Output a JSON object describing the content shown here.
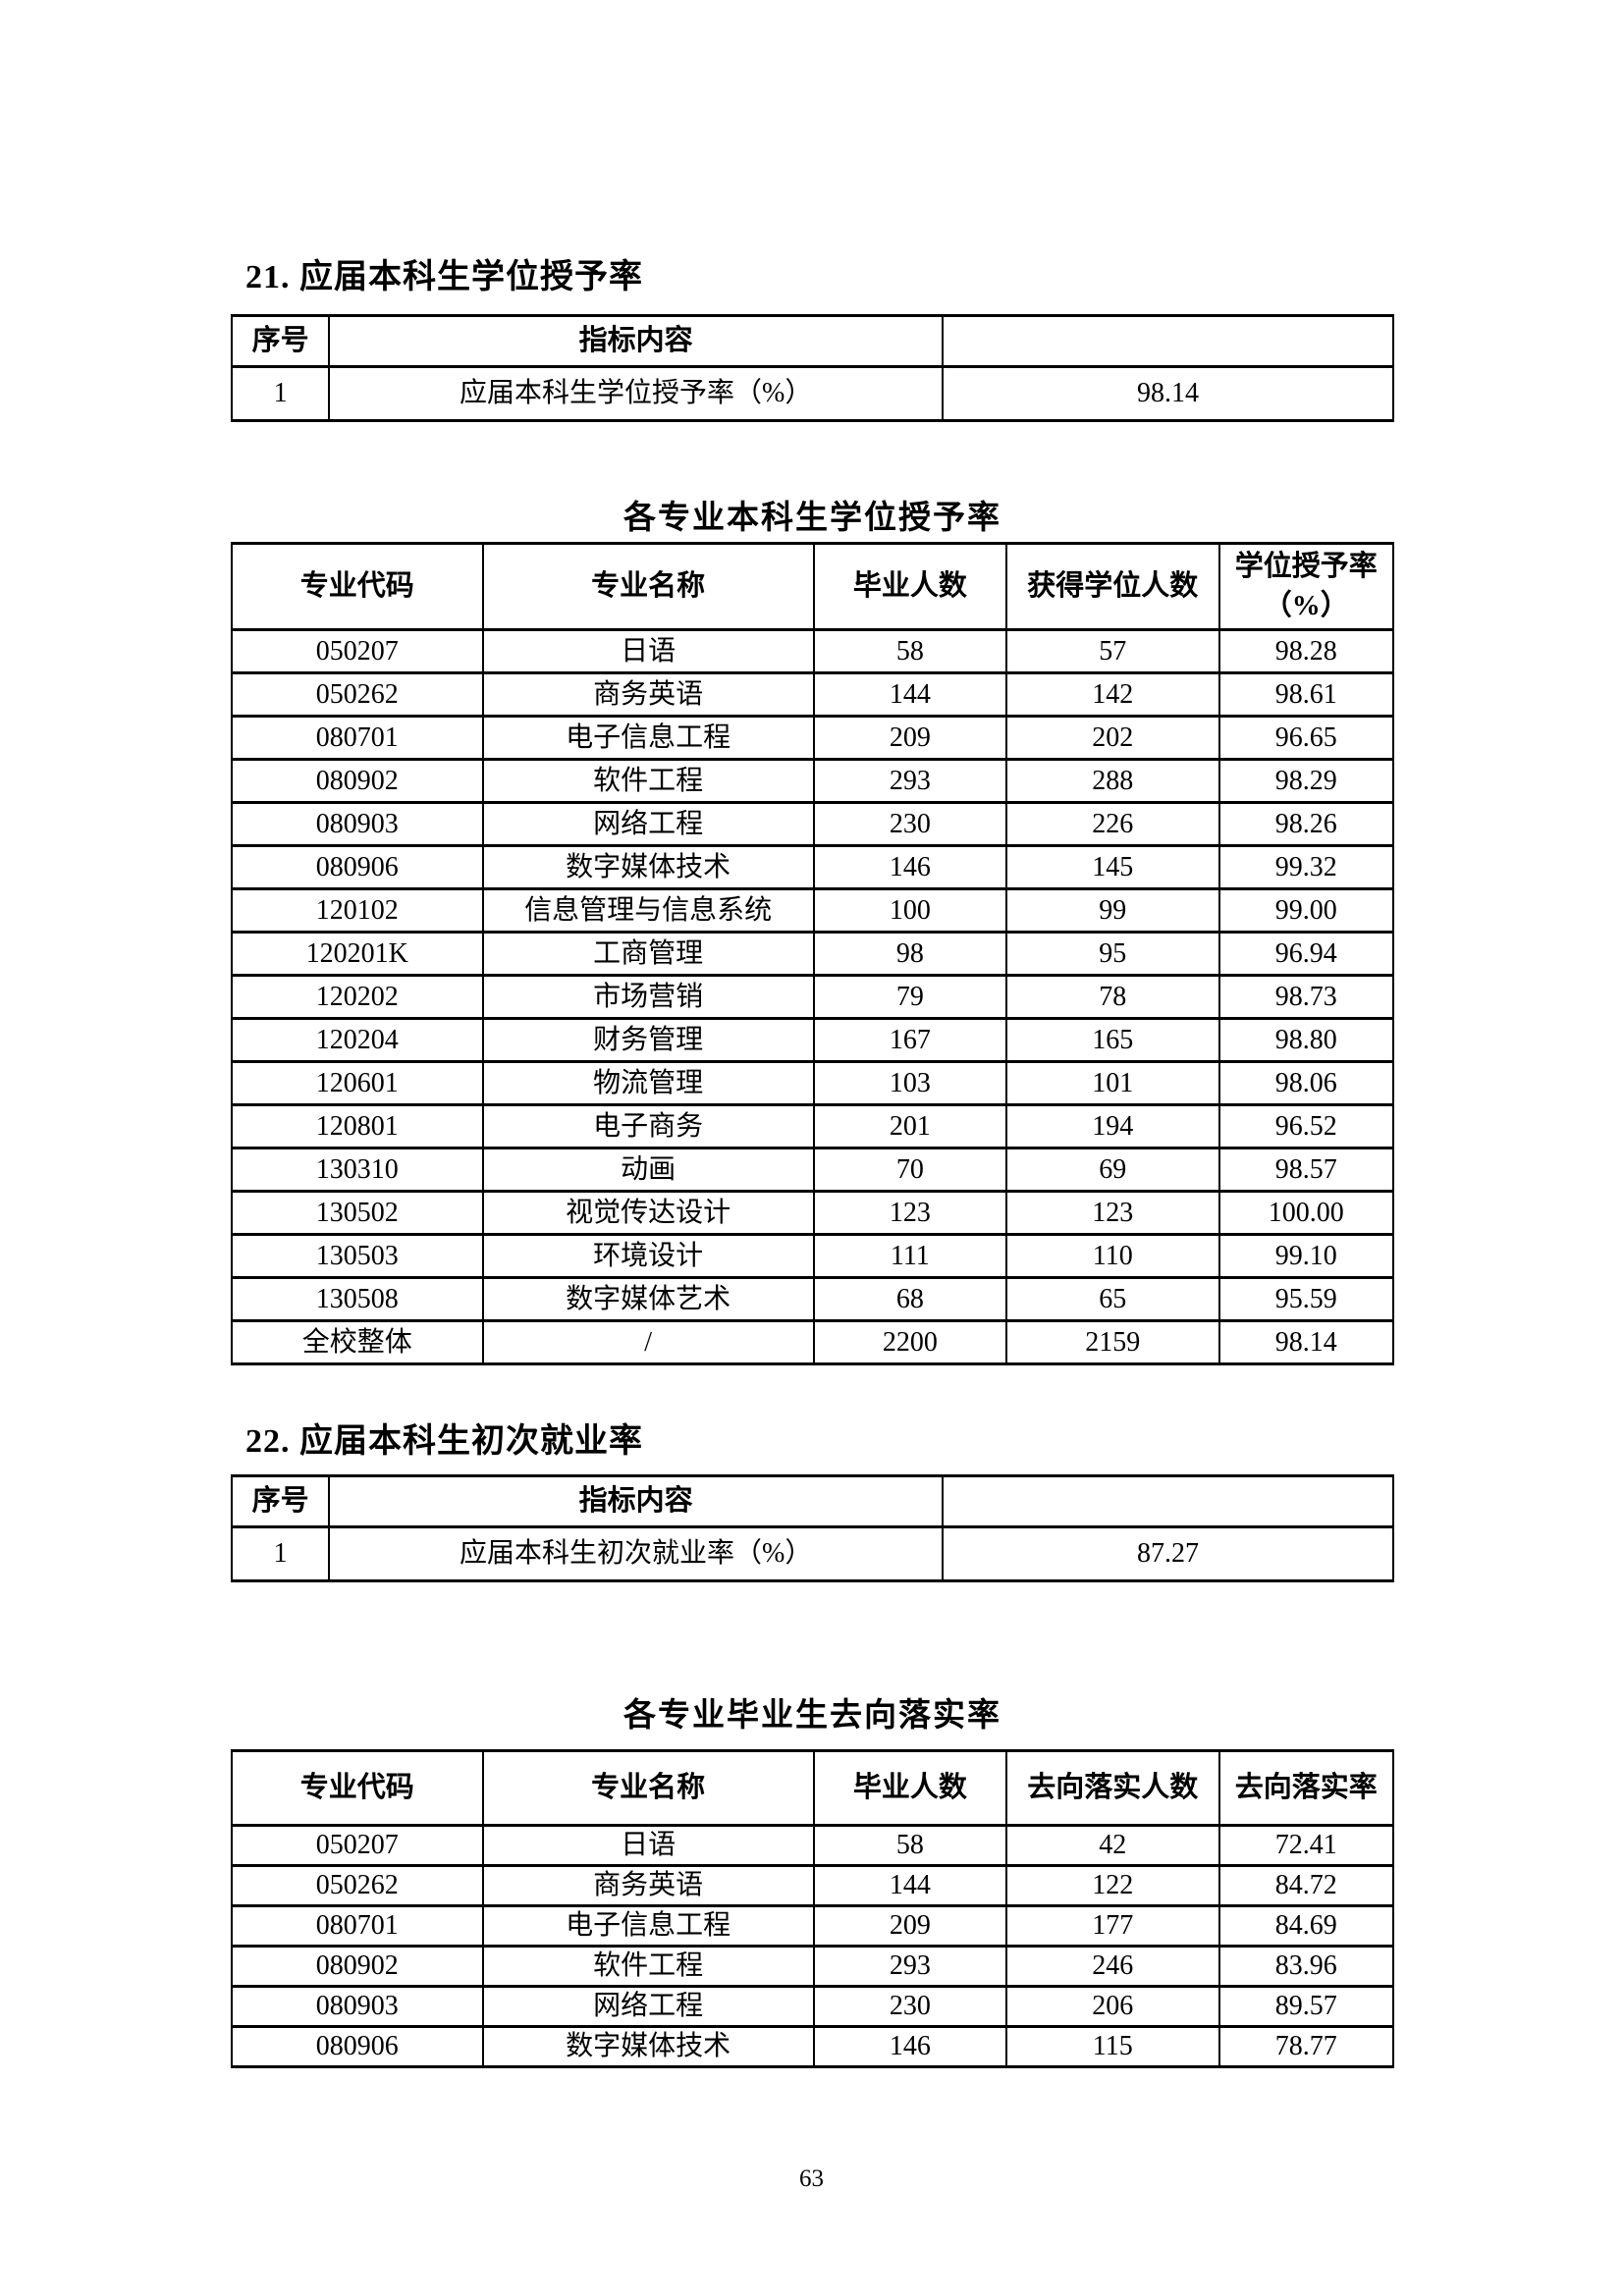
{
  "page_number": "63",
  "section_21": {
    "heading": "21. 应届本科生学位授予率",
    "indicator_table": {
      "col_headers": [
        "序号",
        "指标内容",
        ""
      ],
      "rows": [
        [
          "1",
          "应届本科生学位授予率（%）",
          "98.14"
        ]
      ]
    }
  },
  "degree_table": {
    "title": "各专业本科生学位授予率",
    "col_headers": [
      "专业代码",
      "专业名称",
      "毕业人数",
      "获得学位人数",
      "学位授予率\n（%）"
    ],
    "rows": [
      [
        "050207",
        "日语",
        "58",
        "57",
        "98.28"
      ],
      [
        "050262",
        "商务英语",
        "144",
        "142",
        "98.61"
      ],
      [
        "080701",
        "电子信息工程",
        "209",
        "202",
        "96.65"
      ],
      [
        "080902",
        "软件工程",
        "293",
        "288",
        "98.29"
      ],
      [
        "080903",
        "网络工程",
        "230",
        "226",
        "98.26"
      ],
      [
        "080906",
        "数字媒体技术",
        "146",
        "145",
        "99.32"
      ],
      [
        "120102",
        "信息管理与信息系统",
        "100",
        "99",
        "99.00"
      ],
      [
        "120201K",
        "工商管理",
        "98",
        "95",
        "96.94"
      ],
      [
        "120202",
        "市场营销",
        "79",
        "78",
        "98.73"
      ],
      [
        "120204",
        "财务管理",
        "167",
        "165",
        "98.80"
      ],
      [
        "120601",
        "物流管理",
        "103",
        "101",
        "98.06"
      ],
      [
        "120801",
        "电子商务",
        "201",
        "194",
        "96.52"
      ],
      [
        "130310",
        "动画",
        "70",
        "69",
        "98.57"
      ],
      [
        "130502",
        "视觉传达设计",
        "123",
        "123",
        "100.00"
      ],
      [
        "130503",
        "环境设计",
        "111",
        "110",
        "99.10"
      ],
      [
        "130508",
        "数字媒体艺术",
        "68",
        "65",
        "95.59"
      ],
      [
        "全校整体",
        "/",
        "2200",
        "2159",
        "98.14"
      ]
    ]
  },
  "section_22": {
    "heading": "22. 应届本科生初次就业率",
    "indicator_table": {
      "col_headers": [
        "序号",
        "指标内容",
        ""
      ],
      "rows": [
        [
          "1",
          "应届本科生初次就业率（%）",
          "87.27"
        ]
      ]
    }
  },
  "placement_table": {
    "title": "各专业毕业生去向落实率",
    "col_headers": [
      "专业代码",
      "专业名称",
      "毕业人数",
      "去向落实人数",
      "去向落实率"
    ],
    "rows": [
      [
        "050207",
        "日语",
        "58",
        "42",
        "72.41"
      ],
      [
        "050262",
        "商务英语",
        "144",
        "122",
        "84.72"
      ],
      [
        "080701",
        "电子信息工程",
        "209",
        "177",
        "84.69"
      ],
      [
        "080902",
        "软件工程",
        "293",
        "246",
        "83.96"
      ],
      [
        "080903",
        "网络工程",
        "230",
        "206",
        "89.57"
      ],
      [
        "080906",
        "数字媒体技术",
        "146",
        "115",
        "78.77"
      ]
    ]
  }
}
